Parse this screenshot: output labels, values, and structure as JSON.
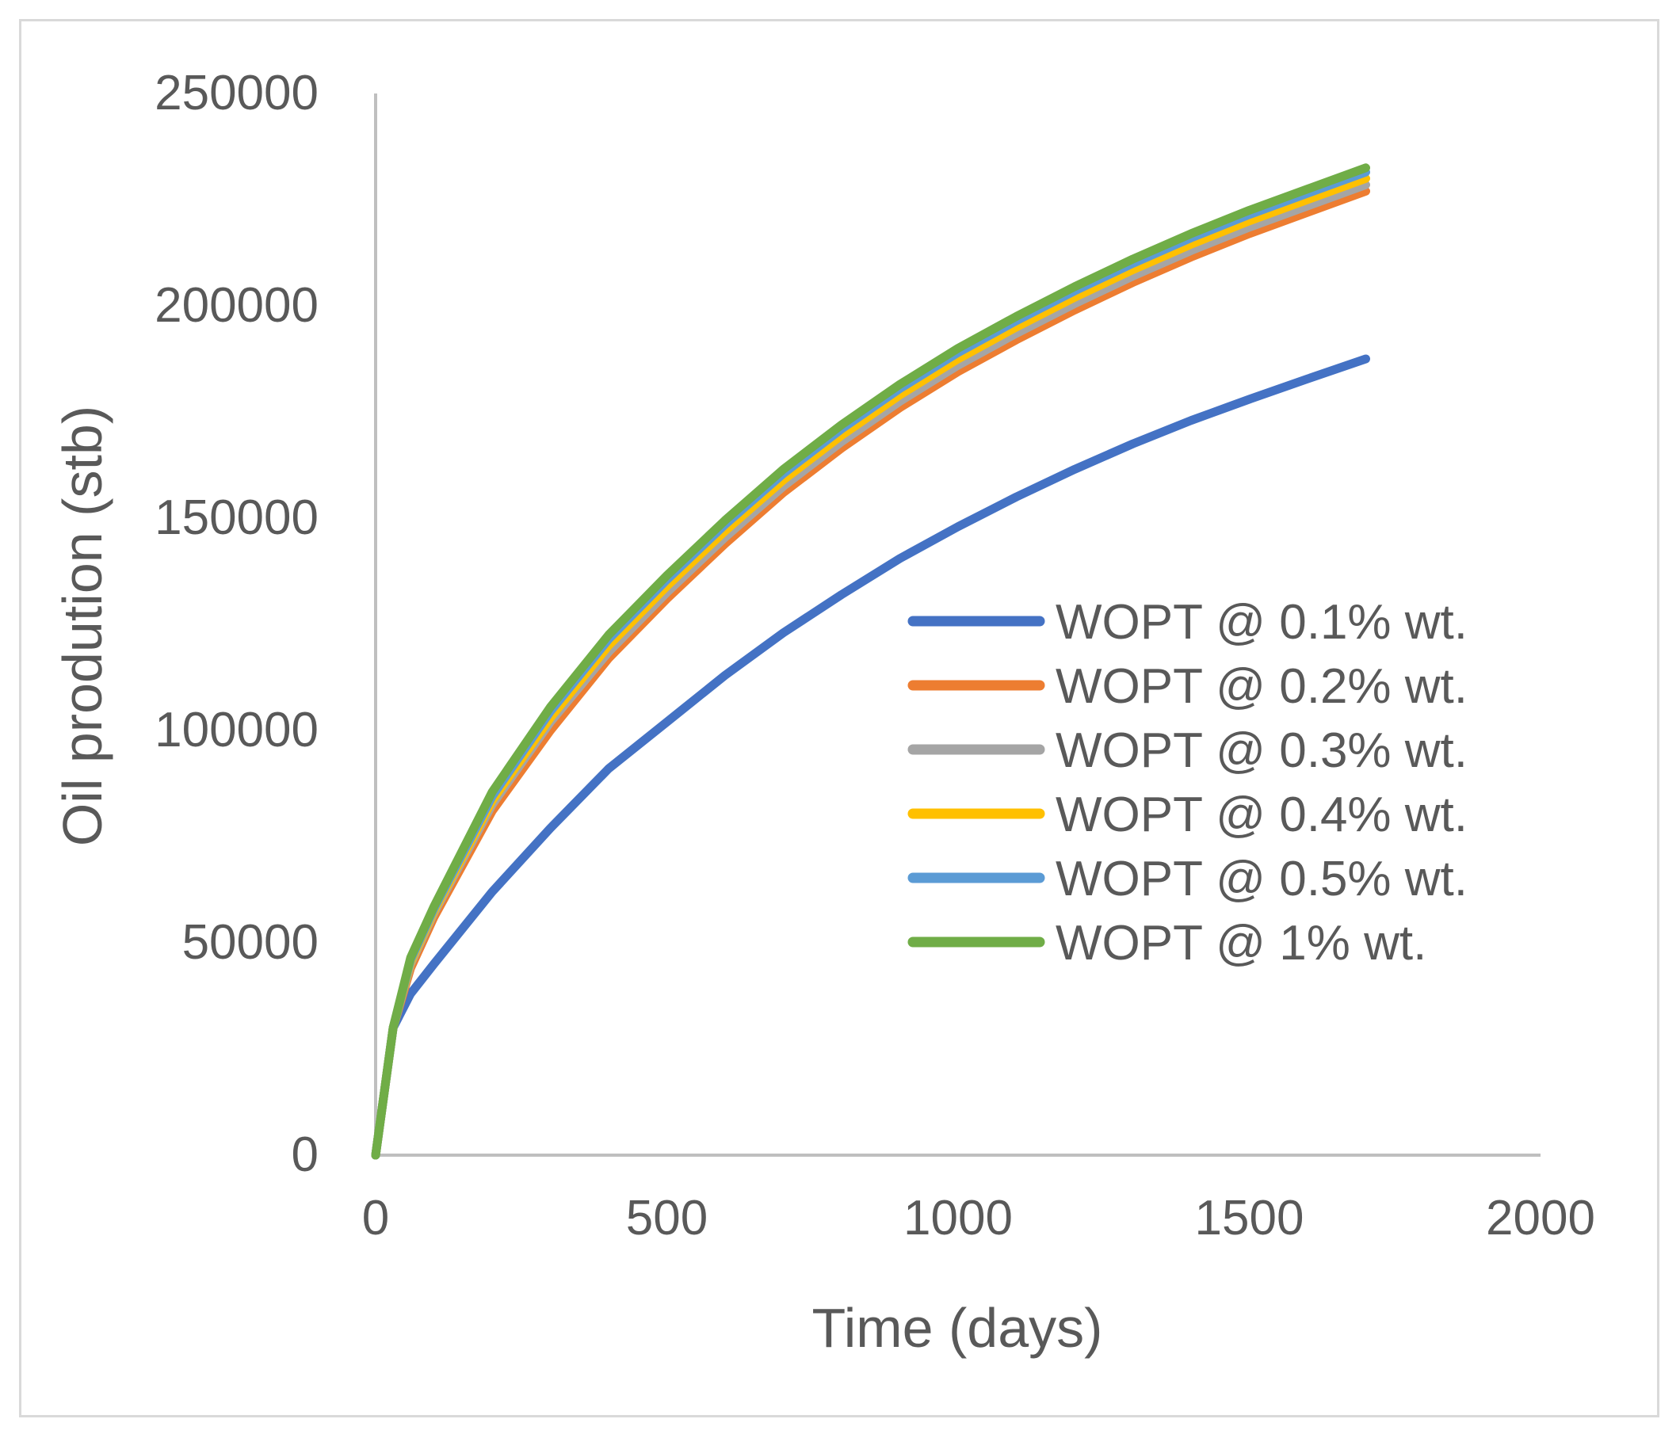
{
  "chart_data": {
    "type": "line",
    "xlabel": "Time (days)",
    "ylabel": "Oil prodution (stb)",
    "xlim": [
      0,
      2000
    ],
    "ylim": [
      0,
      250000
    ],
    "x_ticks": [
      "0",
      "500",
      "1000",
      "1500",
      "2000"
    ],
    "y_ticks": [
      "0",
      "50000",
      "100000",
      "150000",
      "200000",
      "250000"
    ],
    "legend_position": "right",
    "grid": false,
    "series": [
      {
        "name": "WOPT @ 0.1% wt.",
        "color": "#4472C4",
        "x": [
          0,
          30,
          60,
          100,
          200,
          300,
          400,
          500,
          600,
          700,
          800,
          900,
          1000,
          1100,
          1200,
          1300,
          1400,
          1500,
          1600,
          1700
        ],
        "y": [
          0,
          30000,
          38000,
          45000,
          62000,
          77000,
          91000,
          102000,
          113000,
          123000,
          132000,
          140500,
          148000,
          155000,
          161500,
          167500,
          173000,
          178000,
          182800,
          187500
        ]
      },
      {
        "name": "WOPT @ 0.2% wt.",
        "color": "#ED7D31",
        "x": [
          0,
          30,
          60,
          100,
          200,
          300,
          400,
          500,
          600,
          700,
          800,
          900,
          1000,
          1100,
          1200,
          1300,
          1400,
          1500,
          1600,
          1700
        ],
        "y": [
          0,
          30000,
          44000,
          56000,
          81000,
          100000,
          117000,
          131000,
          144000,
          156000,
          166500,
          176000,
          184500,
          192000,
          199000,
          205500,
          211500,
          217000,
          222000,
          227000
        ]
      },
      {
        "name": "WOPT @ 0.3% wt.",
        "color": "#A5A5A5",
        "x": [
          0,
          30,
          60,
          100,
          200,
          300,
          400,
          500,
          600,
          700,
          800,
          900,
          1000,
          1100,
          1200,
          1300,
          1400,
          1500,
          1600,
          1700
        ],
        "y": [
          0,
          30000,
          45000,
          57000,
          82500,
          102000,
          118500,
          132500,
          145500,
          157500,
          168000,
          177500,
          186000,
          193500,
          200500,
          207000,
          213000,
          218500,
          223500,
          228500
        ]
      },
      {
        "name": "WOPT @ 0.4% wt.",
        "color": "#FFC000",
        "x": [
          0,
          30,
          60,
          100,
          200,
          300,
          400,
          500,
          600,
          700,
          800,
          900,
          1000,
          1100,
          1200,
          1300,
          1400,
          1500,
          1600,
          1700
        ],
        "y": [
          0,
          30000,
          45500,
          57500,
          83500,
          103000,
          120000,
          134000,
          147000,
          159000,
          169500,
          179000,
          187500,
          195000,
          202000,
          208500,
          214500,
          220000,
          225000,
          230000
        ]
      },
      {
        "name": "WOPT @ 0.5% wt.",
        "color": "#5B9BD5",
        "x": [
          0,
          30,
          60,
          100,
          200,
          300,
          400,
          500,
          600,
          700,
          800,
          900,
          1000,
          1100,
          1200,
          1300,
          1400,
          1500,
          1600,
          1700
        ],
        "y": [
          0,
          30000,
          46000,
          58000,
          84500,
          104500,
          121500,
          135500,
          148500,
          160500,
          171000,
          180500,
          189000,
          196500,
          203500,
          210000,
          216000,
          221500,
          226500,
          231500
        ]
      },
      {
        "name": "WOPT @ 1% wt.",
        "color": "#70AD47",
        "x": [
          0,
          30,
          60,
          100,
          200,
          300,
          400,
          500,
          600,
          700,
          800,
          900,
          1000,
          1100,
          1200,
          1300,
          1400,
          1500,
          1600,
          1700
        ],
        "y": [
          0,
          30000,
          46500,
          58500,
          85500,
          105500,
          122500,
          136500,
          149500,
          161500,
          172000,
          181500,
          190000,
          197500,
          204500,
          211000,
          217000,
          222500,
          227500,
          232500
        ]
      }
    ]
  }
}
